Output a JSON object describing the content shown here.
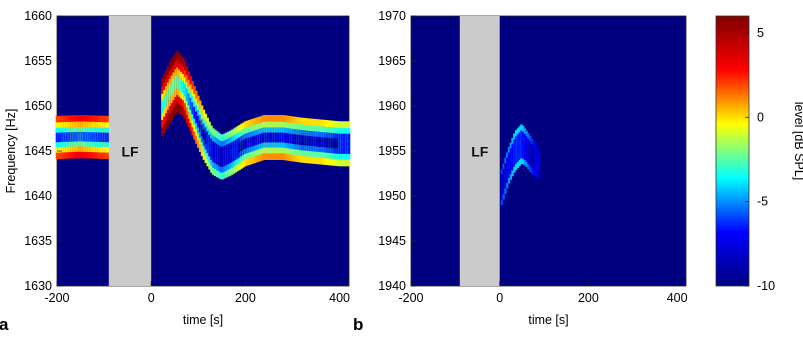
{
  "chart_data": [
    {
      "type": "heatmap",
      "panel_label": "a",
      "xlabel": "time [s]",
      "ylabel": "Frequency [Hz]",
      "xlim": [
        -200,
        420
      ],
      "ylim": [
        1630,
        1660
      ],
      "xticks": [
        -200,
        0,
        200,
        400
      ],
      "xtick_labels": [
        "-200",
        "0",
        "200",
        "400"
      ],
      "yticks": [
        1630,
        1635,
        1640,
        1645,
        1650,
        1655,
        1660
      ],
      "ytick_labels": [
        "1630",
        "1635",
        "1640",
        "1645",
        "1650",
        "1655",
        "1660"
      ],
      "background_level_db": -10,
      "masked_region": {
        "x": [
          -90,
          0
        ],
        "label": "LF",
        "color": "#cbcbcb"
      },
      "trace": {
        "t": [
          -200,
          -150,
          -90,
          0,
          20,
          40,
          55,
          70,
          90,
          110,
          130,
          150,
          170,
          200,
          240,
          280,
          320,
          360,
          400,
          420
        ],
        "freq_hz": [
          1646.5,
          1646.6,
          1646.5,
          null,
          1649.5,
          1651.5,
          1652.8,
          1652.0,
          1649.5,
          1647.0,
          1645.0,
          1644.3,
          1644.8,
          1645.8,
          1646.5,
          1646.5,
          1646.2,
          1646.0,
          1645.8,
          1645.8
        ],
        "peak_level_db": [
          2,
          3,
          2,
          null,
          5,
          6,
          6,
          5,
          2,
          0,
          -2,
          -3,
          -2,
          0,
          1,
          1,
          0,
          0,
          -1,
          -1
        ],
        "width_hz": [
          2.4,
          2.4,
          2.4,
          null,
          3.2,
          3.4,
          3.4,
          3.2,
          3.0,
          2.8,
          2.6,
          2.5,
          2.5,
          2.5,
          2.5,
          2.5,
          2.5,
          2.5,
          2.5,
          2.5
        ]
      },
      "grid": false
    },
    {
      "type": "heatmap",
      "panel_label": "b",
      "xlabel": "time [s]",
      "ylabel": "",
      "xlim": [
        -200,
        420
      ],
      "ylim": [
        1940,
        1970
      ],
      "xticks": [
        -200,
        0,
        200,
        400
      ],
      "xtick_labels": [
        "-200",
        "0",
        "200",
        "400"
      ],
      "yticks": [
        1940,
        1945,
        1950,
        1955,
        1960,
        1965,
        1970
      ],
      "ytick_labels": [
        "1940",
        "1945",
        "1950",
        "1955",
        "1960",
        "1965",
        "1970"
      ],
      "background_level_db": -10,
      "masked_region": {
        "x": [
          -90,
          0
        ],
        "label": "LF",
        "color": "#cbcbcb"
      },
      "trace": {
        "t": [
          5,
          20,
          35,
          50,
          60,
          70,
          80,
          90
        ],
        "freq_hz": [
          1951.0,
          1953.3,
          1955.0,
          1955.8,
          1955.3,
          1954.6,
          1954.0,
          1953.5
        ],
        "peak_level_db": [
          -6,
          -5,
          -4,
          -4,
          -5,
          -6,
          -7,
          -8
        ],
        "width_hz": [
          2.0,
          2.0,
          2.2,
          2.2,
          2.0,
          2.0,
          1.8,
          1.6
        ]
      },
      "grid": false
    }
  ],
  "colorbar": {
    "label": "level [dB SPL]",
    "range": [
      -10,
      6
    ],
    "ticks": [
      5,
      0,
      -5,
      -10
    ],
    "tick_labels": [
      "5",
      "0",
      "-5",
      "-10"
    ],
    "colormap": "jet",
    "colors": [
      "#000080",
      "#0000ff",
      "#00ffff",
      "#ffff00",
      "#ff0000",
      "#800000"
    ]
  }
}
